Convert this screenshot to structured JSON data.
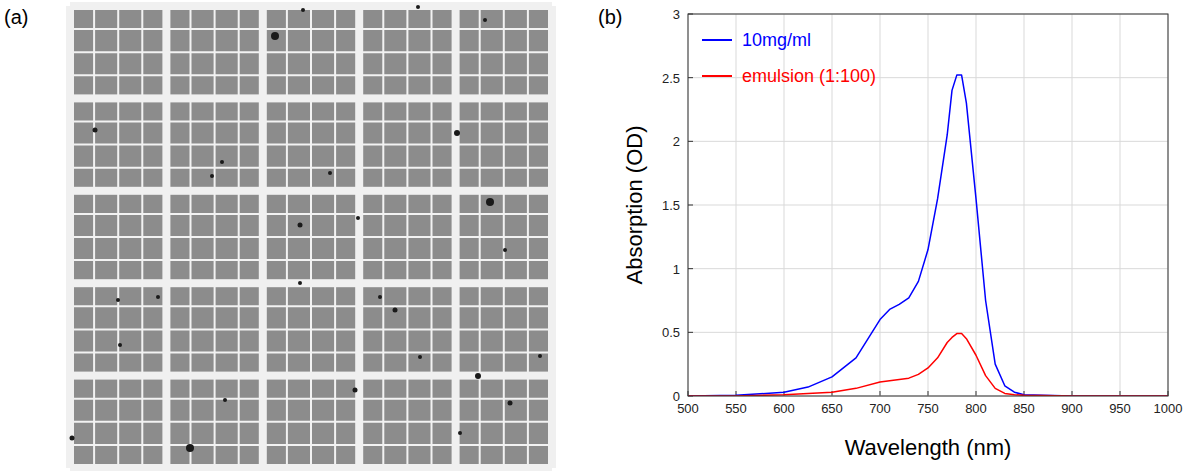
{
  "panels": [
    {
      "label": "(a)"
    },
    {
      "label": "(b)"
    }
  ],
  "chart_data": {
    "type": "line",
    "xlabel": "Wavelength (nm)",
    "ylabel": "Absorption (OD)",
    "x": [
      500,
      550,
      600,
      625,
      650,
      675,
      700,
      710,
      720,
      730,
      740,
      750,
      760,
      770,
      775,
      780,
      785,
      790,
      800,
      810,
      820,
      830,
      840,
      850,
      900,
      950,
      1000
    ],
    "series": [
      {
        "name": "10mg/ml",
        "color": "#0000ff",
        "values": [
          0,
          0.005,
          0.03,
          0.07,
          0.15,
          0.3,
          0.6,
          0.68,
          0.72,
          0.77,
          0.9,
          1.15,
          1.55,
          2.05,
          2.4,
          2.52,
          2.52,
          2.3,
          1.55,
          0.75,
          0.25,
          0.08,
          0.03,
          0.01,
          0,
          0,
          0
        ]
      },
      {
        "name": "emulsion (1:100)",
        "color": "#ff0000",
        "values": [
          0,
          0,
          0.01,
          0.02,
          0.03,
          0.06,
          0.11,
          0.12,
          0.13,
          0.14,
          0.17,
          0.22,
          0.3,
          0.42,
          0.46,
          0.49,
          0.49,
          0.45,
          0.32,
          0.16,
          0.06,
          0.02,
          0.01,
          0.005,
          0,
          0,
          0
        ]
      }
    ],
    "xlim": [
      500,
      1000
    ],
    "xticks": [
      500,
      550,
      600,
      650,
      700,
      750,
      800,
      850,
      900,
      950,
      1000
    ],
    "ylim": [
      0,
      3
    ],
    "yticks": [
      0,
      0.5,
      1,
      1.5,
      2,
      2.5,
      3
    ],
    "grid": true,
    "legend": "upper left"
  }
}
